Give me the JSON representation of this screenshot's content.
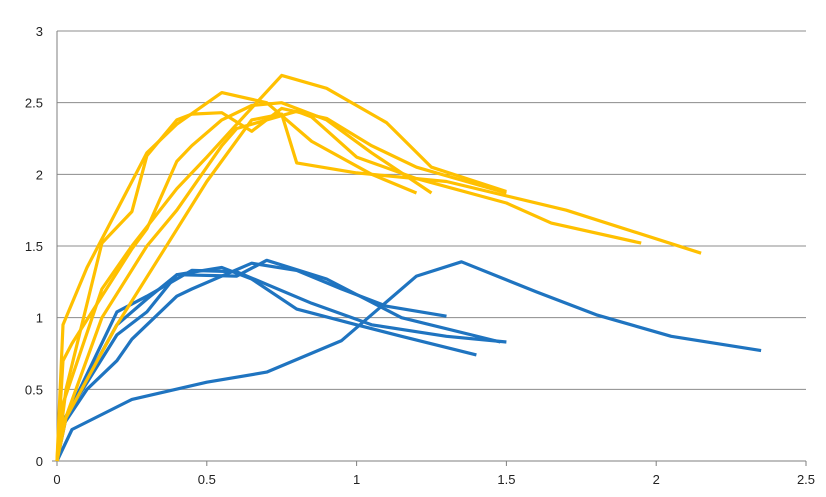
{
  "chart_data": {
    "type": "line",
    "title": "",
    "xlabel": "",
    "ylabel": "",
    "xlim": [
      0,
      2.5
    ],
    "ylim": [
      0,
      3
    ],
    "x_ticks": [
      "0",
      "0.5",
      "1",
      "1.5",
      "2",
      "2.5"
    ],
    "y_ticks": [
      "0",
      "0.5",
      "1",
      "1.5",
      "2",
      "2.5",
      "3"
    ],
    "grid": "horizontal",
    "legend": "none",
    "colors": {
      "blue": "#1f74c0",
      "yellow": "#ffc000",
      "grid": "#8c8c8c",
      "axis": "#7f7f7f"
    },
    "series": [
      {
        "color": "blue",
        "x": [
          0,
          0.02,
          0.1,
          0.2,
          0.25,
          0.4,
          0.45,
          0.65,
          0.8,
          0.95,
          1.1,
          1.3
        ],
        "y": [
          0,
          0.25,
          0.5,
          0.7,
          0.85,
          1.15,
          1.2,
          1.38,
          1.33,
          1.2,
          1.08,
          1.01
        ]
      },
      {
        "color": "blue",
        "x": [
          0,
          0.02,
          0.2,
          0.3,
          0.4,
          0.55,
          0.65,
          0.8,
          1.0,
          1.15,
          1.4
        ],
        "y": [
          0,
          0.27,
          0.95,
          1.13,
          1.3,
          1.35,
          1.27,
          1.06,
          0.95,
          0.87,
          0.74
        ]
      },
      {
        "color": "blue",
        "x": [
          0,
          0.03,
          0.2,
          0.3,
          0.45,
          0.6,
          0.85,
          1.05,
          1.3,
          1.5
        ],
        "y": [
          0,
          0.3,
          1.04,
          1.15,
          1.33,
          1.32,
          1.1,
          0.95,
          0.87,
          0.83
        ]
      },
      {
        "color": "blue",
        "x": [
          0,
          0.02,
          0.2,
          0.3,
          0.4,
          0.6,
          0.7,
          0.9,
          1.15,
          1.48
        ],
        "y": [
          0,
          0.28,
          0.88,
          1.04,
          1.3,
          1.29,
          1.4,
          1.27,
          1.0,
          0.83
        ]
      },
      {
        "color": "blue",
        "x": [
          0,
          0.05,
          0.25,
          0.5,
          0.7,
          0.95,
          1.2,
          1.35,
          1.6,
          1.8,
          2.05,
          2.35
        ],
        "y": [
          0,
          0.22,
          0.43,
          0.55,
          0.62,
          0.84,
          1.29,
          1.39,
          1.18,
          1.02,
          0.87,
          0.77
        ]
      },
      {
        "color": "yellow",
        "x": [
          0,
          0.02,
          0.05,
          0.15,
          0.25,
          0.3,
          0.4,
          0.45,
          0.55,
          0.65,
          0.75,
          0.9,
          1.05,
          1.25
        ],
        "y": [
          0,
          0.7,
          0.82,
          1.15,
          1.48,
          1.62,
          2.09,
          2.2,
          2.38,
          2.48,
          2.5,
          2.38,
          2.15,
          1.87
        ]
      },
      {
        "color": "yellow",
        "x": [
          0,
          0.02,
          0.1,
          0.3,
          0.4,
          0.55,
          0.7,
          0.85,
          1.05,
          1.2
        ],
        "y": [
          0,
          0.95,
          1.35,
          2.15,
          2.35,
          2.57,
          2.5,
          2.23,
          2.0,
          1.87
        ]
      },
      {
        "color": "yellow",
        "x": [
          0,
          0.03,
          0.15,
          0.25,
          0.3,
          0.4,
          0.45,
          0.55,
          0.65,
          0.75,
          0.9,
          1.05,
          1.2,
          1.5
        ],
        "y": [
          0,
          0.5,
          1.52,
          1.74,
          2.13,
          2.38,
          2.42,
          2.43,
          2.3,
          2.46,
          2.39,
          2.2,
          2.05,
          1.87
        ]
      },
      {
        "color": "yellow",
        "x": [
          0,
          0.02,
          0.15,
          0.25,
          0.4,
          0.5,
          0.6,
          0.75,
          0.9,
          1.1,
          1.25,
          1.5
        ],
        "y": [
          0,
          0.4,
          1.2,
          1.5,
          1.9,
          2.12,
          2.35,
          2.69,
          2.6,
          2.36,
          2.05,
          1.88
        ]
      },
      {
        "color": "yellow",
        "x": [
          0,
          0.02,
          0.15,
          0.3,
          0.4,
          0.55,
          0.6,
          0.8,
          0.85,
          1.0,
          1.2,
          1.5,
          1.65,
          1.95
        ],
        "y": [
          0,
          0.25,
          1.0,
          1.5,
          1.75,
          2.2,
          2.32,
          2.44,
          2.4,
          2.12,
          1.97,
          1.8,
          1.66,
          1.52
        ]
      },
      {
        "color": "yellow",
        "x": [
          0,
          0.03,
          0.2,
          0.35,
          0.5,
          0.65,
          0.75,
          0.8,
          1.0,
          1.3,
          1.7,
          2.15
        ],
        "y": [
          0,
          0.3,
          0.95,
          1.45,
          1.95,
          2.38,
          2.42,
          2.08,
          2.01,
          1.95,
          1.75,
          1.45
        ]
      }
    ]
  }
}
